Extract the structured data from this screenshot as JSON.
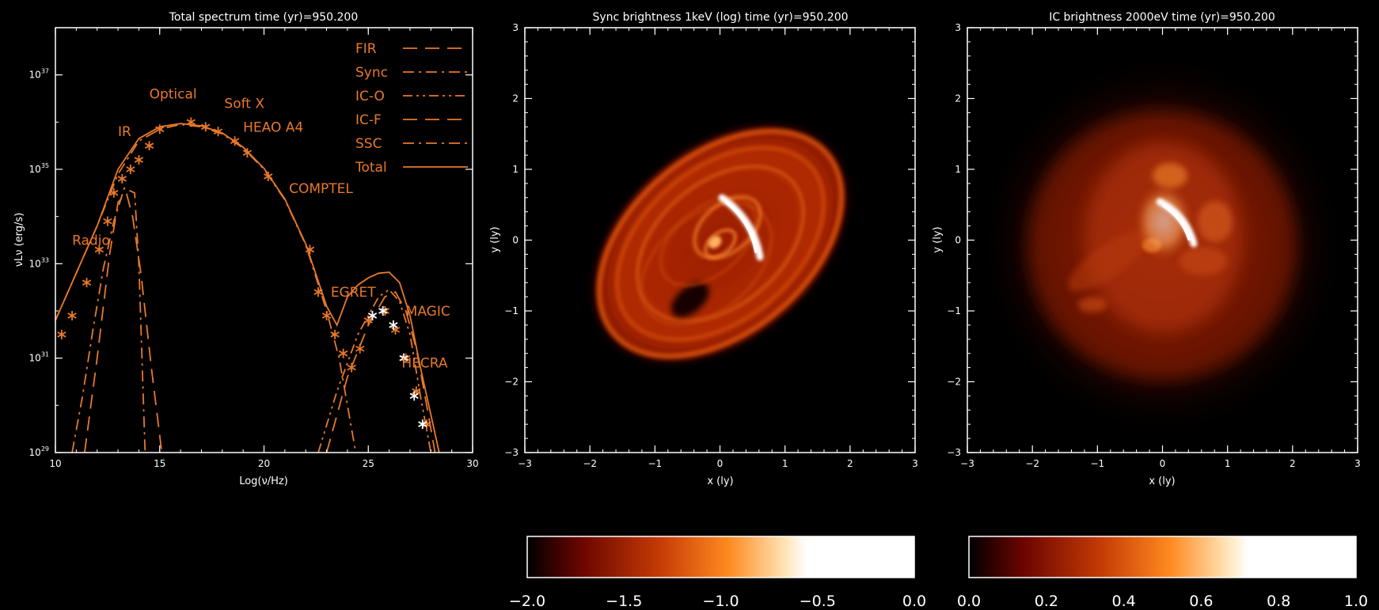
{
  "chart_data": [
    {
      "type": "line",
      "title": "Total spectrum  time (yr)=950.200",
      "xlabel": "Log(ν/Hz)",
      "ylabel": "νLν (erg/s)",
      "xlim": [
        10,
        30
      ],
      "ylim_log10": [
        29,
        38
      ],
      "x_ticks": [
        "10",
        "15",
        "20",
        "25",
        "30"
      ],
      "y_tick_exponents": [
        "29",
        "31",
        "33",
        "35",
        "37"
      ],
      "legend_position": "top-right",
      "colors": {
        "axes": "#ffffff",
        "curves": "#e8792a",
        "data_points": "#e8792a",
        "tev_points": "#ffffff"
      },
      "series": [
        {
          "name": "FIR",
          "style": "dashed",
          "x": [
            11.4,
            12.0,
            12.6,
            13.0,
            13.4,
            13.7,
            14.1,
            14.6,
            15.1
          ],
          "y": [
            29.0,
            31.0,
            33.2,
            34.3,
            34.5,
            34.0,
            32.8,
            30.8,
            29.0
          ]
        },
        {
          "name": "Sync",
          "style": "dash-dot",
          "x": [
            10.0,
            11.0,
            12.0,
            13.0,
            14.0,
            15.0,
            16.0,
            17.0,
            18.0,
            19.0,
            20.0,
            21.0,
            22.0,
            23.0,
            23.6,
            24.0,
            24.4
          ],
          "y": [
            31.8,
            32.8,
            33.8,
            34.9,
            35.6,
            35.85,
            35.95,
            35.9,
            35.75,
            35.45,
            35.0,
            34.35,
            33.4,
            32.0,
            31.0,
            30.0,
            29.0
          ]
        },
        {
          "name": "IC-O",
          "style": "dash-dot-dot",
          "x": [
            22.6,
            23.5,
            24.5,
            25.5,
            26.0,
            26.5,
            27.0,
            27.5,
            28.0
          ],
          "y": [
            29.0,
            30.3,
            31.5,
            32.3,
            32.45,
            32.2,
            31.5,
            30.2,
            29.0
          ]
        },
        {
          "name": "IC-F",
          "style": "dashed",
          "x": [
            23.0,
            24.0,
            25.0,
            25.8,
            26.3,
            26.8,
            27.3,
            27.8,
            28.2
          ],
          "y": [
            29.0,
            30.6,
            31.7,
            32.3,
            32.4,
            32.0,
            31.2,
            30.0,
            29.0
          ]
        },
        {
          "name": "SSC",
          "style": "dash-dot",
          "x": [
            10.8,
            11.3,
            11.8,
            12.3,
            12.8,
            13.3,
            13.8,
            14.0,
            14.3
          ],
          "y": [
            29.0,
            30.2,
            31.6,
            32.9,
            33.9,
            34.6,
            34.5,
            33.0,
            29.0
          ]
        },
        {
          "name": "Total",
          "style": "solid",
          "x": [
            10.0,
            11.0,
            12.0,
            13.0,
            14.0,
            15.0,
            16.0,
            17.0,
            18.0,
            19.0,
            20.0,
            21.0,
            22.0,
            23.0,
            23.5,
            24.0,
            24.5,
            25.0,
            25.5,
            26.0,
            26.5,
            27.0,
            27.5,
            28.0,
            28.4
          ],
          "y": [
            31.8,
            32.8,
            33.8,
            35.0,
            35.65,
            35.9,
            35.97,
            35.92,
            35.77,
            35.47,
            35.02,
            34.37,
            33.42,
            32.1,
            31.7,
            32.3,
            32.55,
            32.7,
            32.8,
            32.82,
            32.6,
            31.9,
            30.8,
            29.8,
            29.0
          ]
        }
      ],
      "observations": [
        {
          "x": [
            10.3,
            10.8,
            11.5,
            12.1,
            12.5
          ],
          "y": [
            31.5,
            31.9,
            32.6,
            33.3,
            33.9
          ]
        },
        {
          "x": [
            12.8,
            13.2,
            13.6,
            14.0,
            14.5,
            15.0
          ],
          "y": [
            34.5,
            34.8,
            35.0,
            35.2,
            35.5,
            35.85
          ]
        },
        {
          "x": [
            16.5,
            17.2,
            17.8
          ],
          "y": [
            36.0,
            35.9,
            35.8
          ]
        },
        {
          "x": [
            18.6,
            19.2
          ],
          "y": [
            35.6,
            35.35
          ]
        },
        {
          "x": [
            20.2
          ],
          "y": [
            34.85
          ]
        },
        {
          "x": [
            22.2
          ],
          "y": [
            33.3
          ]
        },
        {
          "x": [
            22.6,
            23.0,
            23.4,
            23.8,
            24.2,
            24.6,
            25.0
          ],
          "y": [
            32.4,
            31.9,
            31.5,
            31.1,
            30.8,
            31.2,
            31.8
          ]
        },
        {
          "x": [
            25.8,
            26.3,
            26.8,
            27.3,
            27.8
          ],
          "y": [
            32.0,
            31.6,
            31.0,
            30.3,
            29.6
          ]
        }
      ],
      "tev_observations": {
        "x": [
          25.2,
          25.7,
          26.2,
          26.7,
          27.2,
          27.6
        ],
        "y": [
          31.9,
          32.0,
          31.7,
          31.0,
          30.2,
          29.6
        ]
      },
      "annotations": [
        {
          "text": "Radio",
          "x": 10.8,
          "y": 33.4
        },
        {
          "text": "IR",
          "x": 13.0,
          "y": 35.7
        },
        {
          "text": "Optical",
          "x": 14.5,
          "y": 36.5
        },
        {
          "text": "Soft X",
          "x": 18.1,
          "y": 36.3
        },
        {
          "text": "HEAO A4",
          "x": 19.0,
          "y": 35.8
        },
        {
          "text": "COMPTEL",
          "x": 21.2,
          "y": 34.5
        },
        {
          "text": "EGRET",
          "x": 23.2,
          "y": 32.3
        },
        {
          "text": "MAGIC",
          "x": 26.8,
          "y": 31.9
        },
        {
          "text": "HECRA",
          "x": 26.6,
          "y": 30.8
        }
      ]
    },
    {
      "type": "heatmap",
      "title": "Sync brightness  1keV (log)  time (yr)=950.200",
      "xlabel": "x (ly)",
      "ylabel": "y (ly)",
      "xlim": [
        -3,
        3
      ],
      "ylim": [
        -3,
        3
      ],
      "x_ticks": [
        "−3",
        "−2",
        "−1",
        "0",
        "1",
        "2",
        "3"
      ],
      "y_ticks": [
        "−3",
        "−2",
        "−1",
        "0",
        "1",
        "2",
        "3"
      ],
      "colorbar": {
        "range": [
          -2.0,
          0.0
        ],
        "ticks": [
          "−2.0",
          "−1.5",
          "−1.0",
          "−0.5",
          "0.0"
        ]
      },
      "colormap": [
        "#000000",
        "#6b0500",
        "#c43a05",
        "#ff8a20",
        "#ffe0b0",
        "#ffffff"
      ]
    },
    {
      "type": "heatmap",
      "title": "IC brightness  2000eV  time (yr)=950.200",
      "xlabel": "x (ly)",
      "ylabel": "y (ly)",
      "xlim": [
        -3,
        3
      ],
      "ylim": [
        -3,
        3
      ],
      "x_ticks": [
        "−3",
        "−2",
        "−1",
        "0",
        "1",
        "2",
        "3"
      ],
      "y_ticks": [
        "−3",
        "−2",
        "−1",
        "0",
        "1",
        "2",
        "3"
      ],
      "colorbar": {
        "range": [
          0.0,
          1.0
        ],
        "ticks": [
          "0.0",
          "0.2",
          "0.4",
          "0.6",
          "0.8",
          "1.0"
        ]
      },
      "colormap": [
        "#000000",
        "#6b0500",
        "#c43a05",
        "#ff8a20",
        "#ffe0b0",
        "#ffffff"
      ]
    }
  ]
}
